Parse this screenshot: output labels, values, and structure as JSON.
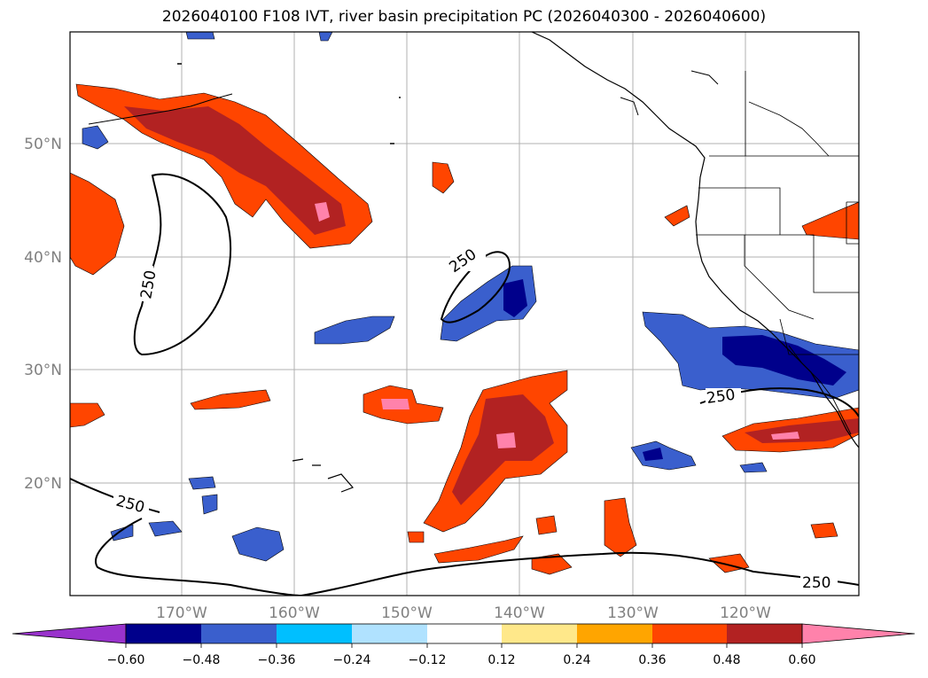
{
  "title": "2026040100 F108 IVT, river basin precipitation PC (2026040300 - 2026040600)",
  "map": {
    "lon_ticks": [
      "170°W",
      "160°W",
      "150°W",
      "140°W",
      "130°W",
      "120°W"
    ],
    "lat_ticks": [
      "50°N",
      "40°N",
      "30°N",
      "20°N"
    ],
    "contour_value": "250",
    "contour_labels": [
      "250",
      "250",
      "250",
      "250",
      "250"
    ]
  },
  "colorbar": {
    "ticks": [
      "−0.60",
      "−0.48",
      "−0.36",
      "−0.24",
      "−0.12",
      "0.12",
      "0.24",
      "0.36",
      "0.48",
      "0.60"
    ],
    "colors": [
      "#9932cc",
      "#00008b",
      "#3a5fcd",
      "#00bfff",
      "#b0e2ff",
      "#ffffff",
      "#ffe88a",
      "#ffa500",
      "#ff4500",
      "#b22222",
      "#ff82ab"
    ]
  }
}
